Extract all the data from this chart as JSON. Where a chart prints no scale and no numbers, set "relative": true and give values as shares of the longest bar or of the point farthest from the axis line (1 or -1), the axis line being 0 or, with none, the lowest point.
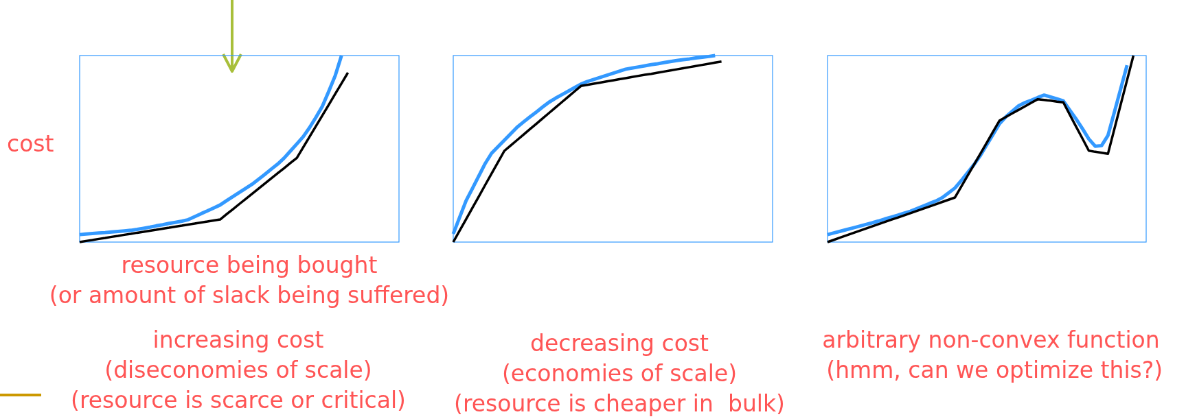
{
  "chart_data": [
    {
      "type": "line",
      "relative": true,
      "ylabel": "cost",
      "xlabel": "resource being bought\n(or amount of slack being suffered)",
      "title": "increasing cost\n(diseconomies of scale)\n(resource is scarce or critical)",
      "categories": [
        null,
        null,
        null,
        null,
        null,
        null,
        null,
        null,
        null,
        null,
        null,
        null,
        null,
        null,
        null,
        null,
        null,
        null,
        null,
        null,
        null,
        null,
        null,
        null,
        null,
        null,
        null,
        null,
        null,
        null,
        null,
        null,
        null,
        null,
        null,
        null,
        null,
        null,
        null,
        null,
        null,
        null,
        null,
        null,
        null,
        null,
        null,
        null,
        null,
        null,
        null
      ],
      "series": [
        {
          "color": "#3399ff",
          "values": [
            0.04,
            0.043,
            0.046,
            0.049,
            0.051,
            0.054,
            0.057,
            0.06,
            0.063,
            0.068,
            0.074,
            0.08,
            0.087,
            0.093,
            0.1,
            0.106,
            0.112,
            0.12,
            0.136,
            0.152,
            0.167,
            0.183,
            0.199,
            0.222,
            0.244,
            0.266,
            0.288,
            0.31,
            0.336,
            0.363,
            0.391,
            0.418,
            0.45,
            0.488,
            0.526,
            0.565,
            0.614,
            0.669,
            0.728,
            0.808,
            0.891,
            1,
            null,
            null,
            null,
            null,
            null,
            null,
            null,
            null,
            null
          ]
        },
        {
          "color": "#000000",
          "values": [
            0,
            0.006,
            0.011,
            0.017,
            0.022,
            0.028,
            0.033,
            0.039,
            0.044,
            0.05,
            0.055,
            0.061,
            0.066,
            0.072,
            0.077,
            0.083,
            0.088,
            0.094,
            0.099,
            0.105,
            0.11,
            0.116,
            0.121,
            0.149,
            0.176,
            0.204,
            0.231,
            0.259,
            0.286,
            0.314,
            0.341,
            0.369,
            0.396,
            0.424,
            0.451,
            0.508,
            0.565,
            0.622,
            0.679,
            0.736,
            0.794,
            0.851,
            0.908,
            null,
            null,
            null,
            null,
            null,
            null,
            null,
            null
          ]
        }
      ]
    },
    {
      "type": "line",
      "relative": true,
      "title": "decreasing cost\n(economies of scale)\n(resource is cheaper in  bulk)",
      "categories": [
        null,
        null,
        null,
        null,
        null,
        null,
        null,
        null,
        null,
        null,
        null,
        null,
        null,
        null,
        null,
        null,
        null,
        null,
        null,
        null,
        null,
        null,
        null,
        null,
        null,
        null,
        null,
        null,
        null,
        null,
        null,
        null,
        null,
        null,
        null,
        null,
        null,
        null,
        null,
        null,
        null,
        null,
        null,
        null,
        null,
        null,
        null,
        null,
        null,
        null,
        null
      ],
      "series": [
        {
          "color": "#3399ff",
          "values": [
            0.044,
            0.133,
            0.221,
            0.287,
            0.354,
            0.421,
            0.476,
            0.511,
            0.546,
            0.581,
            0.616,
            0.644,
            0.671,
            0.697,
            0.724,
            0.75,
            0.771,
            0.79,
            0.809,
            0.828,
            0.847,
            0.861,
            0.872,
            0.883,
            0.894,
            0.905,
            0.916,
            0.927,
            0.933,
            0.939,
            0.945,
            0.951,
            0.956,
            0.962,
            0.968,
            0.973,
            0.978,
            0.982,
            0.987,
            0.991,
            0.995,
            1,
            null,
            null,
            null,
            null,
            null,
            null,
            null,
            null,
            null
          ]
        },
        {
          "color": "#000000",
          "values": [
            0,
            0.061,
            0.122,
            0.183,
            0.244,
            0.306,
            0.367,
            0.428,
            0.489,
            0.518,
            0.547,
            0.576,
            0.605,
            0.634,
            0.663,
            0.692,
            0.721,
            0.75,
            0.779,
            0.808,
            0.837,
            0.843,
            0.849,
            0.855,
            0.861,
            0.867,
            0.873,
            0.879,
            0.885,
            0.891,
            0.897,
            0.902,
            0.908,
            0.914,
            0.92,
            0.926,
            0.932,
            0.938,
            0.944,
            0.95,
            0.956,
            0.962,
            0.968,
            null,
            null,
            null,
            null,
            null,
            null,
            null,
            null
          ]
        }
      ]
    },
    {
      "type": "line",
      "relative": true,
      "title": "arbitrary non-convex function\n (hmm, can we optimize this?)",
      "categories": [
        null,
        null,
        null,
        null,
        null,
        null,
        null,
        null,
        null,
        null,
        null,
        null,
        null,
        null,
        null,
        null,
        null,
        null,
        null,
        null,
        null,
        null,
        null,
        null,
        null,
        null,
        null,
        null,
        null,
        null,
        null,
        null,
        null,
        null,
        null,
        null,
        null,
        null,
        null,
        null,
        null,
        null,
        null,
        null,
        null,
        null,
        null,
        null,
        null,
        null,
        null
      ],
      "series": [
        {
          "color": "#3399ff",
          "values": [
            0.04,
            0.049,
            0.058,
            0.067,
            0.076,
            0.085,
            0.094,
            0.103,
            0.113,
            0.124,
            0.134,
            0.144,
            0.155,
            0.165,
            0.179,
            0.193,
            0.207,
            0.22,
            0.238,
            0.264,
            0.29,
            0.33,
            0.373,
            0.416,
            0.465,
            0.522,
            0.578,
            0.635,
            0.672,
            0.702,
            0.731,
            0.748,
            0.761,
            0.775,
            0.788,
            0.778,
            0.768,
            0.757,
            0.708,
            0.66,
            0.608,
            0.553,
            0.514,
            0.517,
            0.571,
            0.695,
            0.821,
            0.948,
            null,
            null,
            null
          ]
        },
        {
          "color": "#000000",
          "values": [
            0,
            0.012,
            0.024,
            0.036,
            0.048,
            0.06,
            0.072,
            0.084,
            0.096,
            0.108,
            0.12,
            0.131,
            0.143,
            0.155,
            0.167,
            0.179,
            0.191,
            0.203,
            0.215,
            0.227,
            0.239,
            0.298,
            0.357,
            0.416,
            0.475,
            0.534,
            0.593,
            0.652,
            0.671,
            0.69,
            0.709,
            0.728,
            0.747,
            0.766,
            0.762,
            0.758,
            0.753,
            0.749,
            0.684,
            0.619,
            0.555,
            0.49,
            0.484,
            0.479,
            0.473,
            0.605,
            0.737,
            0.868,
            1,
            null,
            null
          ]
        }
      ]
    }
  ]
}
